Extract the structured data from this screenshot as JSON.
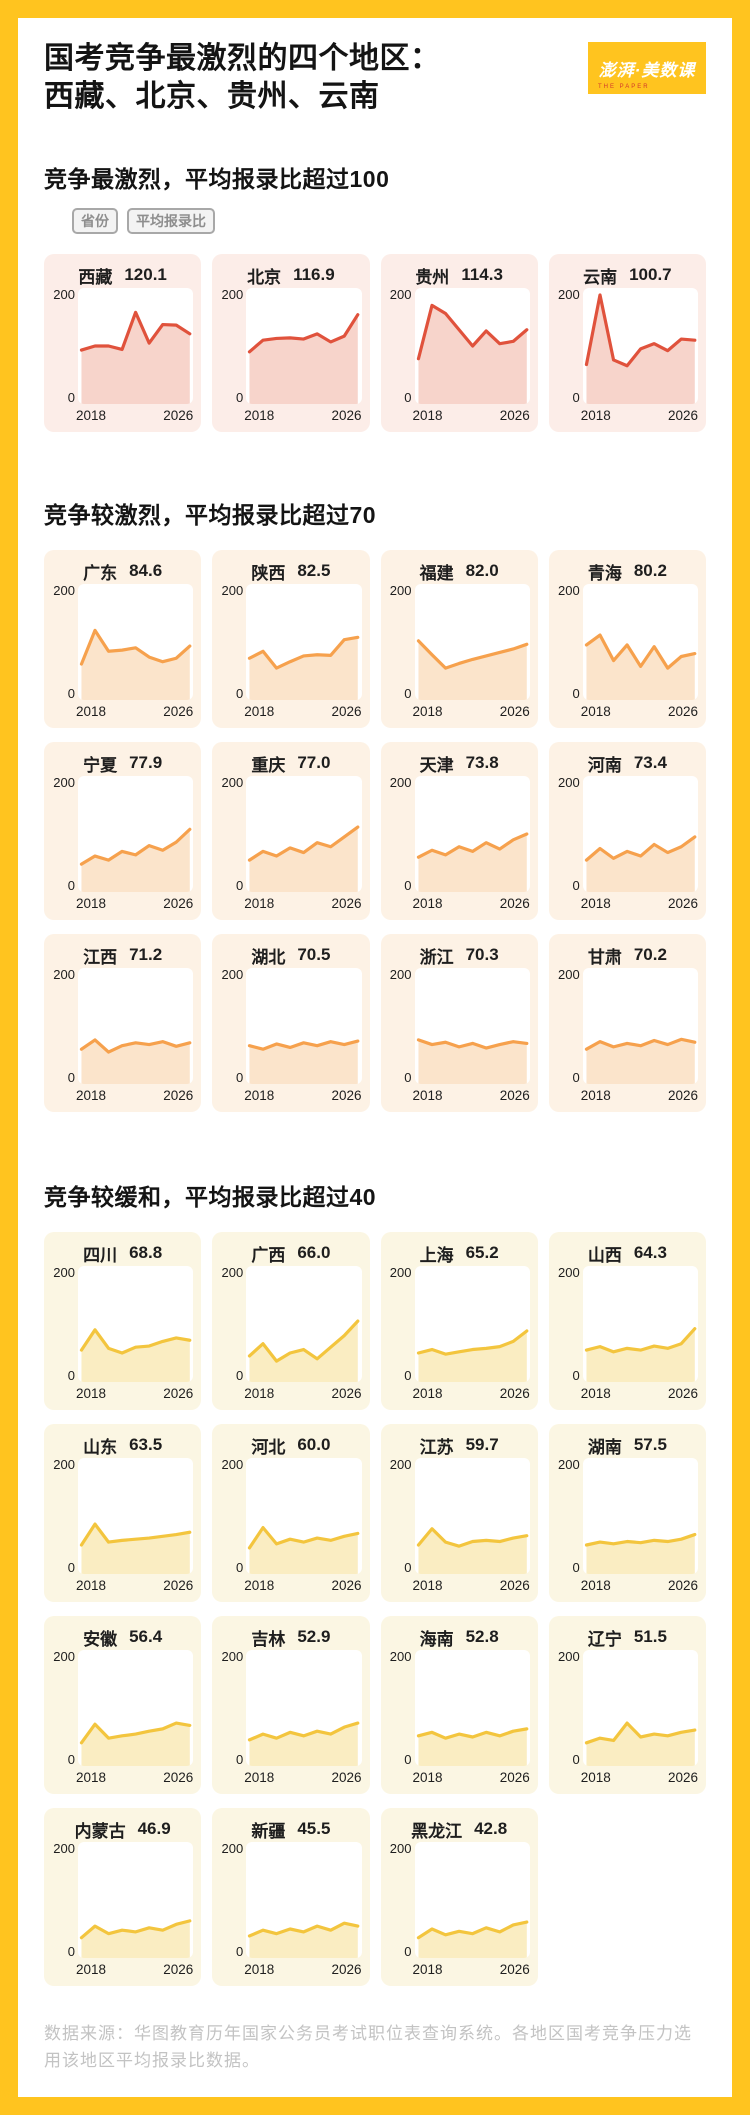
{
  "header": {
    "title_line1": "国考竞争最激烈的四个地区：",
    "title_line2": "西藏、北京、贵州、云南",
    "logo_text": "澎湃·美数课",
    "logo_subtext": "THE PAPER"
  },
  "legend": {
    "chips": [
      "省份",
      "平均报录比"
    ]
  },
  "axis": {
    "y_max": "200",
    "y_min": "0",
    "x_start": "2018",
    "x_end": "2026"
  },
  "colors": {
    "page_border": "#FFC41F",
    "themes": {
      "red": {
        "line": "#E0523C",
        "fill": "#F7D4CB",
        "tile_bg": "#FCEDE8"
      },
      "orange": {
        "line": "#F6A14D",
        "fill": "#FBE4CB",
        "tile_bg": "#FDF2E5"
      },
      "yellow": {
        "line": "#F3C53E",
        "fill": "#FAEDC2",
        "tile_bg": "#FBF6E3"
      }
    }
  },
  "footer": {
    "text": "数据来源：华图教育历年国家公务员考试职位表查询系统。各地区国考竞争压力选用该地区平均报录比数据。"
  },
  "chart_data": {
    "type": "area",
    "x_years": [
      2018,
      2019,
      2020,
      2021,
      2022,
      2023,
      2024,
      2025,
      2026
    ],
    "ylim": [
      0,
      200
    ],
    "grid": false,
    "sections": [
      {
        "heading": "竞争最激烈，平均报录比超过100",
        "theme": "red",
        "charts": [
          {
            "province": "西藏",
            "avg": "120.1",
            "values": [
              93,
              100,
              100,
              94,
              158,
              105,
              137,
              136,
              121
            ]
          },
          {
            "province": "北京",
            "avg": "116.9",
            "values": [
              90,
              110,
              113,
              114,
              112,
              121,
              107,
              117,
              154
            ]
          },
          {
            "province": "贵州",
            "avg": "114.3",
            "values": [
              78,
              170,
              156,
              128,
              100,
              126,
              104,
              108,
              128
            ]
          },
          {
            "province": "云南",
            "avg": "100.7",
            "values": [
              68,
              188,
              76,
              66,
              95,
              104,
              92,
              112,
              110
            ]
          }
        ]
      },
      {
        "heading": "竞争较激烈，平均报录比超过70",
        "theme": "orange",
        "charts": [
          {
            "province": "广东",
            "avg": "84.6",
            "values": [
              62,
              120,
              84,
              86,
              90,
              74,
              66,
              72,
              93
            ]
          },
          {
            "province": "陕西",
            "avg": "82.5",
            "values": [
              72,
              84,
              55,
              66,
              76,
              78,
              77,
              104,
              108
            ]
          },
          {
            "province": "福建",
            "avg": "82.0",
            "values": [
              102,
              78,
              55,
              63,
              70,
              76,
              82,
              88,
              96
            ]
          },
          {
            "province": "青海",
            "avg": "80.2",
            "values": [
              95,
              112,
              68,
              95,
              58,
              92,
              55,
              75,
              80
            ]
          },
          {
            "province": "宁夏",
            "avg": "77.9",
            "values": [
              48,
              62,
              55,
              70,
              64,
              80,
              72,
              86,
              108
            ]
          },
          {
            "province": "重庆",
            "avg": "77.0",
            "values": [
              55,
              70,
              62,
              76,
              68,
              85,
              78,
              95,
              112
            ]
          },
          {
            "province": "天津",
            "avg": "73.8",
            "values": [
              60,
              72,
              64,
              78,
              70,
              85,
              74,
              90,
              100
            ]
          },
          {
            "province": "河南",
            "avg": "73.4",
            "values": [
              55,
              75,
              58,
              70,
              62,
              82,
              68,
              78,
              95
            ]
          },
          {
            "province": "江西",
            "avg": "71.2",
            "values": [
              60,
              76,
              55,
              66,
              71,
              68,
              73,
              65,
              71
            ]
          },
          {
            "province": "湖北",
            "avg": "70.5",
            "values": [
              66,
              60,
              69,
              63,
              71,
              66,
              73,
              68,
              74
            ]
          },
          {
            "province": "浙江",
            "avg": "70.3",
            "values": [
              76,
              68,
              72,
              64,
              70,
              62,
              68,
              73,
              70
            ]
          },
          {
            "province": "甘肃",
            "avg": "70.2",
            "values": [
              60,
              73,
              64,
              70,
              66,
              75,
              68,
              77,
              72
            ]
          }
        ]
      },
      {
        "heading": "竞争较缓和，平均报录比超过40",
        "theme": "yellow",
        "charts": [
          {
            "province": "四川",
            "avg": "68.8",
            "values": [
              55,
              90,
              58,
              50,
              60,
              62,
              70,
              76,
              72
            ]
          },
          {
            "province": "广西",
            "avg": "66.0",
            "values": [
              45,
              66,
              36,
              50,
              56,
              40,
              60,
              80,
              105
            ]
          },
          {
            "province": "上海",
            "avg": "65.2",
            "values": [
              50,
              56,
              48,
              52,
              56,
              58,
              61,
              70,
              88
            ]
          },
          {
            "province": "山西",
            "avg": "64.3",
            "values": [
              55,
              61,
              52,
              58,
              55,
              62,
              58,
              66,
              92
            ]
          },
          {
            "province": "山东",
            "avg": "63.5",
            "values": [
              50,
              86,
              55,
              58,
              60,
              62,
              65,
              68,
              72
            ]
          },
          {
            "province": "河北",
            "avg": "60.0",
            "values": [
              45,
              80,
              52,
              60,
              55,
              62,
              58,
              65,
              70
            ]
          },
          {
            "province": "江苏",
            "avg": "59.7",
            "values": [
              50,
              78,
              55,
              48,
              56,
              58,
              56,
              62,
              66
            ]
          },
          {
            "province": "湖南",
            "avg": "57.5",
            "values": [
              50,
              55,
              52,
              56,
              54,
              58,
              56,
              60,
              68
            ]
          },
          {
            "province": "安徽",
            "avg": "56.4",
            "values": [
              40,
              72,
              48,
              52,
              55,
              60,
              64,
              74,
              70
            ]
          },
          {
            "province": "吉林",
            "avg": "52.9",
            "values": [
              45,
              55,
              48,
              58,
              52,
              60,
              55,
              67,
              74
            ]
          },
          {
            "province": "海南",
            "avg": "52.8",
            "values": [
              52,
              58,
              48,
              55,
              50,
              58,
              52,
              60,
              64
            ]
          },
          {
            "province": "辽宁",
            "avg": "51.5",
            "values": [
              40,
              48,
              44,
              74,
              50,
              55,
              52,
              58,
              62
            ]
          },
          {
            "province": "内蒙古",
            "avg": "46.9",
            "values": [
              35,
              55,
              42,
              48,
              45,
              52,
              48,
              58,
              64
            ]
          },
          {
            "province": "新疆",
            "avg": "45.5",
            "values": [
              38,
              48,
              42,
              50,
              45,
              55,
              48,
              60,
              55
            ]
          },
          {
            "province": "黑龙江",
            "avg": "42.8",
            "values": [
              35,
              50,
              40,
              46,
              42,
              52,
              45,
              57,
              62
            ]
          }
        ]
      }
    ]
  }
}
